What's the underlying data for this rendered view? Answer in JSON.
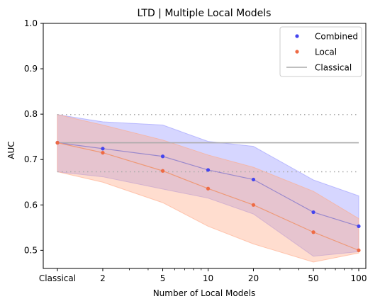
{
  "chart_data": {
    "type": "line",
    "title": "LTD | Multiple Local Models",
    "xlabel": "Number of Local Models",
    "ylabel": "AUC",
    "x_scale": "log",
    "x": [
      1,
      2,
      5,
      10,
      20,
      50,
      100
    ],
    "xticks": [
      1,
      2,
      5,
      10,
      20,
      50,
      100
    ],
    "xtick_labels": [
      "Classical",
      "2",
      "5",
      "10",
      "20",
      "50",
      "100"
    ],
    "ylim": [
      0.46,
      1.0
    ],
    "yticks": [
      0.5,
      0.6,
      0.7,
      0.8,
      0.9,
      1.0
    ],
    "ytick_labels": [
      "0.5",
      "0.6",
      "0.7",
      "0.8",
      "0.9",
      "1.0"
    ],
    "grid": false,
    "legend_position": "top-right",
    "legend": [
      {
        "label": "Combined",
        "marker": "dot",
        "color": "#4444ee"
      },
      {
        "label": "Local",
        "marker": "dot",
        "color": "#ee6a44"
      },
      {
        "label": "Classical",
        "marker": "line",
        "color": "#aaaaaa"
      }
    ],
    "series": [
      {
        "name": "Combined",
        "color": "#4444ee",
        "band_color": "#9999ff",
        "line_color": "#9988cc",
        "values": [
          0.737,
          0.724,
          0.707,
          0.677,
          0.656,
          0.584,
          0.553
        ],
        "upper": [
          0.799,
          0.783,
          0.776,
          0.74,
          0.729,
          0.655,
          0.62
        ],
        "lower": [
          0.673,
          0.662,
          0.635,
          0.615,
          0.58,
          0.487,
          0.497
        ]
      },
      {
        "name": "Local",
        "color": "#ee6a44",
        "band_color": "#ffaa88",
        "line_color": "#ee9977",
        "values": [
          0.737,
          0.715,
          0.675,
          0.636,
          0.6,
          0.54,
          0.5
        ],
        "upper": [
          0.799,
          0.776,
          0.743,
          0.71,
          0.683,
          0.63,
          0.57
        ],
        "lower": [
          0.673,
          0.65,
          0.605,
          0.553,
          0.514,
          0.474,
          0.494
        ]
      }
    ],
    "reference_lines": {
      "name": "Classical",
      "color": "#aaaaaa",
      "mean": 0.737,
      "upper": 0.799,
      "lower": 0.673
    }
  }
}
